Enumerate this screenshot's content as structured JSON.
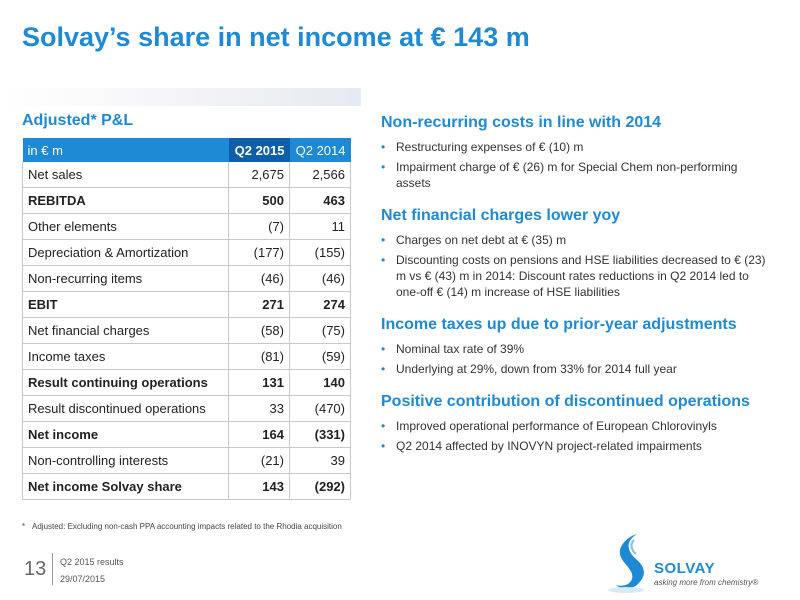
{
  "title": "Solvay’s share in net income at € 143 m",
  "left": {
    "heading": "Adjusted* P&L",
    "table": {
      "headers": [
        "in € m",
        "Q2 2015",
        "Q2 2014"
      ],
      "rows": [
        {
          "label": "Net sales",
          "q2015": "2,675",
          "q2014": "2,566",
          "bold": false
        },
        {
          "label": "REBITDA",
          "q2015": "500",
          "q2014": "463",
          "bold": true
        },
        {
          "label": "Other elements",
          "q2015": "(7)",
          "q2014": "11",
          "bold": false
        },
        {
          "label": "Depreciation & Amortization",
          "q2015": "(177)",
          "q2014": "(155)",
          "bold": false
        },
        {
          "label": "Non-recurring items",
          "q2015": "(46)",
          "q2014": "(46)",
          "bold": false
        },
        {
          "label": "EBIT",
          "q2015": "271",
          "q2014": "274",
          "bold": true
        },
        {
          "label": "Net financial charges",
          "q2015": "(58)",
          "q2014": "(75)",
          "bold": false
        },
        {
          "label": "Income taxes",
          "q2015": "(81)",
          "q2014": "(59)",
          "bold": false
        },
        {
          "label": "Result continuing operations",
          "q2015": "131",
          "q2014": "140",
          "bold": true
        },
        {
          "label": "Result discontinued operations",
          "q2015": "33",
          "q2014": "(470)",
          "bold": false
        },
        {
          "label": "Net income",
          "q2015": "164",
          "q2014": "(331)",
          "bold": true
        },
        {
          "label": "Non-controlling interests",
          "q2015": "(21)",
          "q2014": "39",
          "bold": false
        },
        {
          "label": "Net income Solvay share",
          "q2015": "143",
          "q2014": "(292)",
          "bold": true
        }
      ]
    }
  },
  "sections": [
    {
      "heading": "Non-recurring costs in line with 2014",
      "bullets": [
        "Restructuring expenses of € (10) m",
        "Impairment charge of € (26) m for Special Chem non-performing assets"
      ]
    },
    {
      "heading": "Net financial charges lower yoy",
      "bullets": [
        "Charges on net debt at € (35) m",
        "Discounting costs  on pensions and HSE liabilities decreased to € (23) m vs € (43) m in 2014: Discount rates reductions in Q2 2014 led to one-off € (14) m increase of HSE liabilities"
      ]
    },
    {
      "heading": "Income taxes up due to prior-year adjustments",
      "bullets": [
        "Nominal tax rate of 39%",
        "Underlying at 29%, down from 33% for 2014 full year"
      ]
    },
    {
      "heading": "Positive contribution of discontinued operations",
      "bullets": [
        "Improved operational performance of European Chlorovinyls",
        "Q2 2014 affected by INOVYN project-related impairments"
      ]
    }
  ],
  "footnote": {
    "star": "*",
    "text": "Adjusted: Excluding non-cash PPA accounting impacts related to the Rhodia acquisition"
  },
  "footer": {
    "page": "13",
    "doc": "Q2 2015 results",
    "date": "29/07/2015"
  },
  "logo": {
    "word": "SOLVAY",
    "tagline": "asking more from chemistry®",
    "color": "#1e8ad6"
  }
}
